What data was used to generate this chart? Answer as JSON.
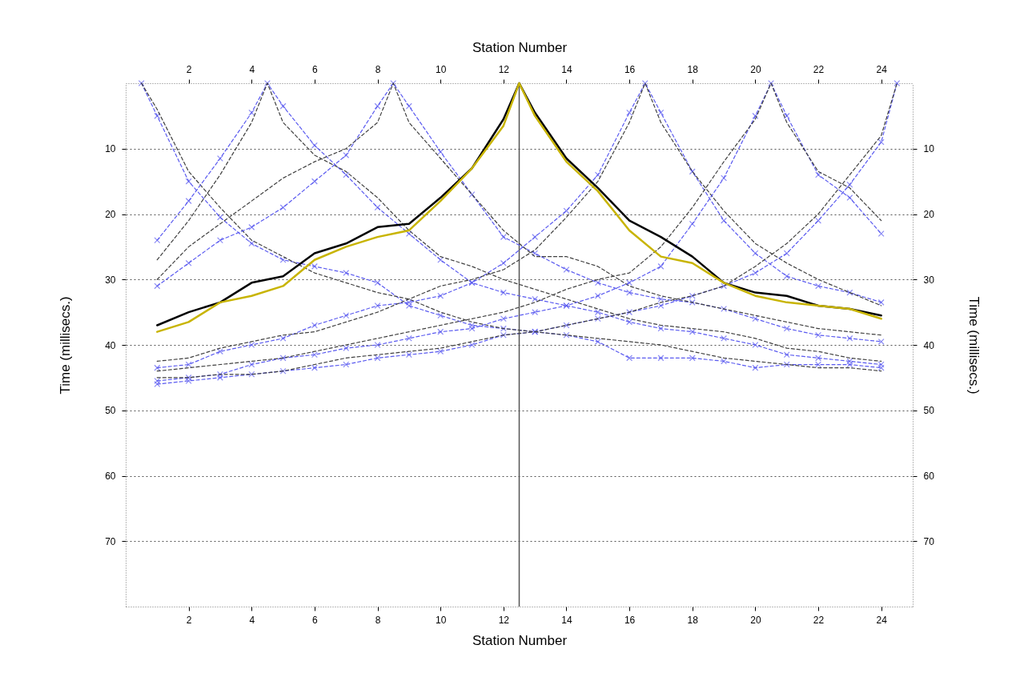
{
  "chart_data": {
    "type": "line",
    "xlabel": "Station Number",
    "x2label": "Station Number",
    "ylabel": "Time (millisecs.)",
    "y2label": "Time (millisecs.)",
    "xlim": [
      0,
      25
    ],
    "xticks": [
      2,
      4,
      6,
      8,
      10,
      12,
      14,
      16,
      18,
      20,
      22,
      24
    ],
    "x2lim": [
      0,
      25
    ],
    "x2ticks": [
      2,
      4,
      6,
      8,
      10,
      12,
      14,
      16,
      18,
      20,
      22,
      24
    ],
    "ylim": [
      80,
      0
    ],
    "yticks": [
      10,
      20,
      30,
      40,
      50,
      60,
      70
    ],
    "y2lim": [
      80,
      0
    ],
    "y2ticks": [
      10,
      20,
      30,
      40,
      50,
      60,
      70
    ],
    "grid": "y",
    "ref_lines": [
      {
        "axis": "x",
        "value": 12.5,
        "color": "#555555",
        "line_style": "solid"
      }
    ],
    "series": [
      {
        "color": "#5a5af0",
        "marker": "cross",
        "line_style": "dashed",
        "x": [
          0.5,
          1,
          2,
          3,
          4,
          5,
          6,
          7,
          8,
          9,
          10,
          11,
          12,
          13,
          14,
          15,
          16,
          17,
          18,
          19,
          20,
          21,
          22,
          23,
          24
        ],
        "values": [
          0,
          5,
          15,
          20.5,
          24.5,
          27,
          28,
          29,
          30.5,
          34,
          35.5,
          37,
          37.5,
          38,
          38.5,
          39.5,
          42,
          42,
          42,
          42.5,
          43.5,
          43,
          43,
          43,
          43.5
        ]
      },
      {
        "color": "#404040",
        "marker": "none",
        "line_style": "dashed",
        "x": [
          0.5,
          1,
          2,
          3,
          4,
          5,
          6,
          7,
          8,
          9,
          10,
          11,
          12,
          13,
          14,
          15,
          16,
          17,
          18,
          19,
          20,
          21,
          22,
          23,
          24
        ],
        "values": [
          0,
          4,
          13.5,
          19,
          24,
          26.5,
          29,
          30.5,
          32,
          33,
          35,
          36.5,
          37.5,
          38,
          38.5,
          39,
          39.5,
          40,
          41,
          42,
          42.5,
          43,
          43.5,
          43.5,
          44
        ]
      },
      {
        "color": "#5a5af0",
        "marker": "cross",
        "line_style": "dashed",
        "x": [
          1,
          2,
          3,
          4,
          4.5,
          5,
          6,
          7,
          8,
          9,
          10,
          11,
          12,
          13,
          14,
          15,
          16,
          17,
          18,
          19,
          20,
          21,
          22,
          23,
          24
        ],
        "values": [
          24,
          18,
          11.5,
          4.5,
          0,
          3.5,
          9.5,
          14,
          19,
          23,
          27,
          30.5,
          32,
          33,
          34,
          35,
          36.5,
          37.5,
          38,
          39,
          40,
          41.5,
          42,
          42.5,
          43
        ]
      },
      {
        "color": "#404040",
        "marker": "none",
        "line_style": "dashed",
        "x": [
          1,
          2,
          3,
          4,
          4.5,
          5,
          6,
          7,
          8,
          9,
          10,
          11,
          12,
          13,
          14,
          15,
          16,
          17,
          18,
          19,
          20,
          21,
          22,
          23,
          24
        ],
        "values": [
          27,
          21,
          14,
          6,
          0,
          6,
          11,
          13.5,
          17.5,
          22.5,
          26.5,
          28,
          30,
          31.5,
          33,
          34.5,
          36,
          37,
          37.5,
          38,
          39,
          40.5,
          41,
          42,
          42.5
        ]
      },
      {
        "color": "#5a5af0",
        "marker": "cross",
        "line_style": "dashed",
        "x": [
          1,
          2,
          3,
          4,
          5,
          6,
          7,
          8,
          8.5,
          9,
          10,
          11,
          12,
          13,
          14,
          15,
          16,
          17,
          18,
          19,
          20,
          21,
          22,
          23,
          24
        ],
        "values": [
          31,
          27.5,
          24,
          22,
          19,
          15,
          11,
          3.5,
          0,
          3.5,
          10.5,
          17,
          23.5,
          26,
          28.5,
          30.5,
          32,
          33,
          33.5,
          34.5,
          36,
          37.5,
          38.5,
          39,
          39.5
        ]
      },
      {
        "color": "#404040",
        "marker": "none",
        "line_style": "dashed",
        "x": [
          1,
          2,
          3,
          4,
          5,
          6,
          7,
          8,
          8.5,
          9,
          10,
          11,
          12,
          13,
          14,
          15,
          16,
          17,
          18,
          19,
          20,
          21,
          22,
          23,
          24
        ],
        "values": [
          30,
          25,
          21.5,
          18,
          14.5,
          12,
          10,
          6,
          0,
          6,
          11.5,
          17,
          22.5,
          26.5,
          26.5,
          28,
          31,
          32.5,
          33.5,
          34.5,
          35.5,
          36.5,
          37.5,
          38,
          38.5
        ]
      },
      {
        "color": "#5a5af0",
        "marker": "cross",
        "line_style": "dashed",
        "x": [
          1,
          2,
          3,
          4,
          5,
          6,
          7,
          8,
          9,
          10,
          11,
          12,
          13,
          14,
          15,
          16,
          16.5,
          17,
          18,
          19,
          20,
          21,
          22,
          23,
          24
        ],
        "values": [
          43.5,
          43,
          41,
          40,
          39,
          37,
          35.5,
          34,
          33.5,
          32.5,
          30.5,
          27.5,
          23.5,
          19.5,
          14,
          4.5,
          0,
          4.5,
          13.5,
          21,
          26,
          29.5,
          31,
          32,
          33.5
        ]
      },
      {
        "color": "#404040",
        "marker": "none",
        "line_style": "dashed",
        "x": [
          1,
          2,
          3,
          4,
          5,
          6,
          7,
          8,
          9,
          10,
          11,
          12,
          13,
          14,
          15,
          16,
          16.5,
          17,
          18,
          19,
          20,
          21,
          22,
          23,
          24
        ],
        "values": [
          42.5,
          42,
          40.5,
          39.5,
          38.5,
          38,
          36.5,
          35,
          33,
          31,
          30,
          28.5,
          25.5,
          20.5,
          15,
          6,
          0,
          6,
          13.5,
          19.5,
          24.5,
          27.5,
          30,
          32,
          34
        ]
      },
      {
        "color": "#5a5af0",
        "marker": "cross",
        "line_style": "dashed",
        "x": [
          1,
          2,
          3,
          4,
          5,
          6,
          7,
          8,
          9,
          10,
          11,
          12,
          13,
          14,
          15,
          16,
          17,
          18,
          19,
          20,
          20.5,
          21,
          22,
          23,
          24
        ],
        "values": [
          45.5,
          45,
          44.5,
          43,
          42,
          41.5,
          40.5,
          40,
          39,
          38,
          37.5,
          36,
          35,
          34,
          32.5,
          30.5,
          28,
          21.5,
          14.5,
          5,
          0,
          5,
          14,
          17.5,
          23
        ]
      },
      {
        "color": "#404040",
        "marker": "none",
        "line_style": "dashed",
        "x": [
          1,
          2,
          3,
          4,
          5,
          6,
          7,
          8,
          9,
          10,
          11,
          12,
          13,
          14,
          15,
          16,
          17,
          18,
          19,
          20,
          20.5,
          21,
          22,
          23,
          24
        ],
        "values": [
          44,
          43.5,
          43,
          42.5,
          42,
          41,
          40,
          39,
          38,
          37,
          36,
          35,
          33.5,
          31.5,
          30,
          29,
          25,
          19,
          12,
          5.5,
          0,
          6,
          13.5,
          16,
          21
        ]
      },
      {
        "color": "#5a5af0",
        "marker": "cross",
        "line_style": "dashed",
        "x": [
          1,
          2,
          3,
          4,
          5,
          6,
          7,
          8,
          9,
          10,
          11,
          12,
          13,
          14,
          15,
          16,
          17,
          18,
          19,
          20,
          21,
          22,
          23,
          24,
          24.5
        ],
        "values": [
          46,
          45.5,
          45,
          44.5,
          44,
          43.5,
          43,
          42,
          41.5,
          41,
          40,
          38.5,
          38,
          37,
          36,
          35,
          34,
          32.5,
          31,
          29,
          26,
          21,
          15.5,
          9,
          0
        ]
      },
      {
        "color": "#404040",
        "marker": "none",
        "line_style": "dashed",
        "x": [
          1,
          2,
          3,
          4,
          5,
          6,
          7,
          8,
          9,
          10,
          11,
          12,
          13,
          14,
          15,
          16,
          17,
          18,
          19,
          20,
          21,
          22,
          23,
          24,
          24.5
        ],
        "values": [
          45,
          45,
          44.5,
          44.5,
          44,
          43,
          42,
          41.5,
          41,
          40.5,
          39.5,
          38.5,
          38,
          37,
          36,
          35,
          33.5,
          32.5,
          31,
          28,
          24.5,
          20,
          14,
          8,
          0
        ]
      },
      {
        "color": "#000000",
        "marker": "none",
        "line_style": "solid",
        "x": [
          1,
          2,
          3,
          4,
          5,
          6,
          7,
          8,
          9,
          10,
          11,
          12,
          12.5,
          13,
          14,
          15,
          16,
          17,
          18,
          19,
          20,
          21,
          22,
          23,
          24
        ],
        "values": [
          37,
          35,
          33.5,
          30.5,
          29.5,
          26,
          24.5,
          22,
          21.5,
          17.5,
          13,
          5.5,
          0,
          4.5,
          11.5,
          16,
          21,
          23.5,
          26.5,
          30.5,
          32,
          32.5,
          34,
          34.5,
          35.5
        ]
      },
      {
        "color": "#c8b400",
        "marker": "none",
        "line_style": "solid",
        "x": [
          1,
          2,
          3,
          4,
          5,
          6,
          7,
          8,
          9,
          10,
          11,
          12,
          12.5,
          13,
          14,
          15,
          16,
          17,
          18,
          19,
          20,
          21,
          22,
          23,
          24
        ],
        "values": [
          38,
          36.5,
          33.5,
          32.5,
          31,
          27,
          25,
          23.5,
          22.5,
          18,
          13,
          6.5,
          0,
          5,
          12,
          16.5,
          22.5,
          26.5,
          27.5,
          30.5,
          32.5,
          33.5,
          34,
          34.5,
          36
        ]
      }
    ]
  }
}
